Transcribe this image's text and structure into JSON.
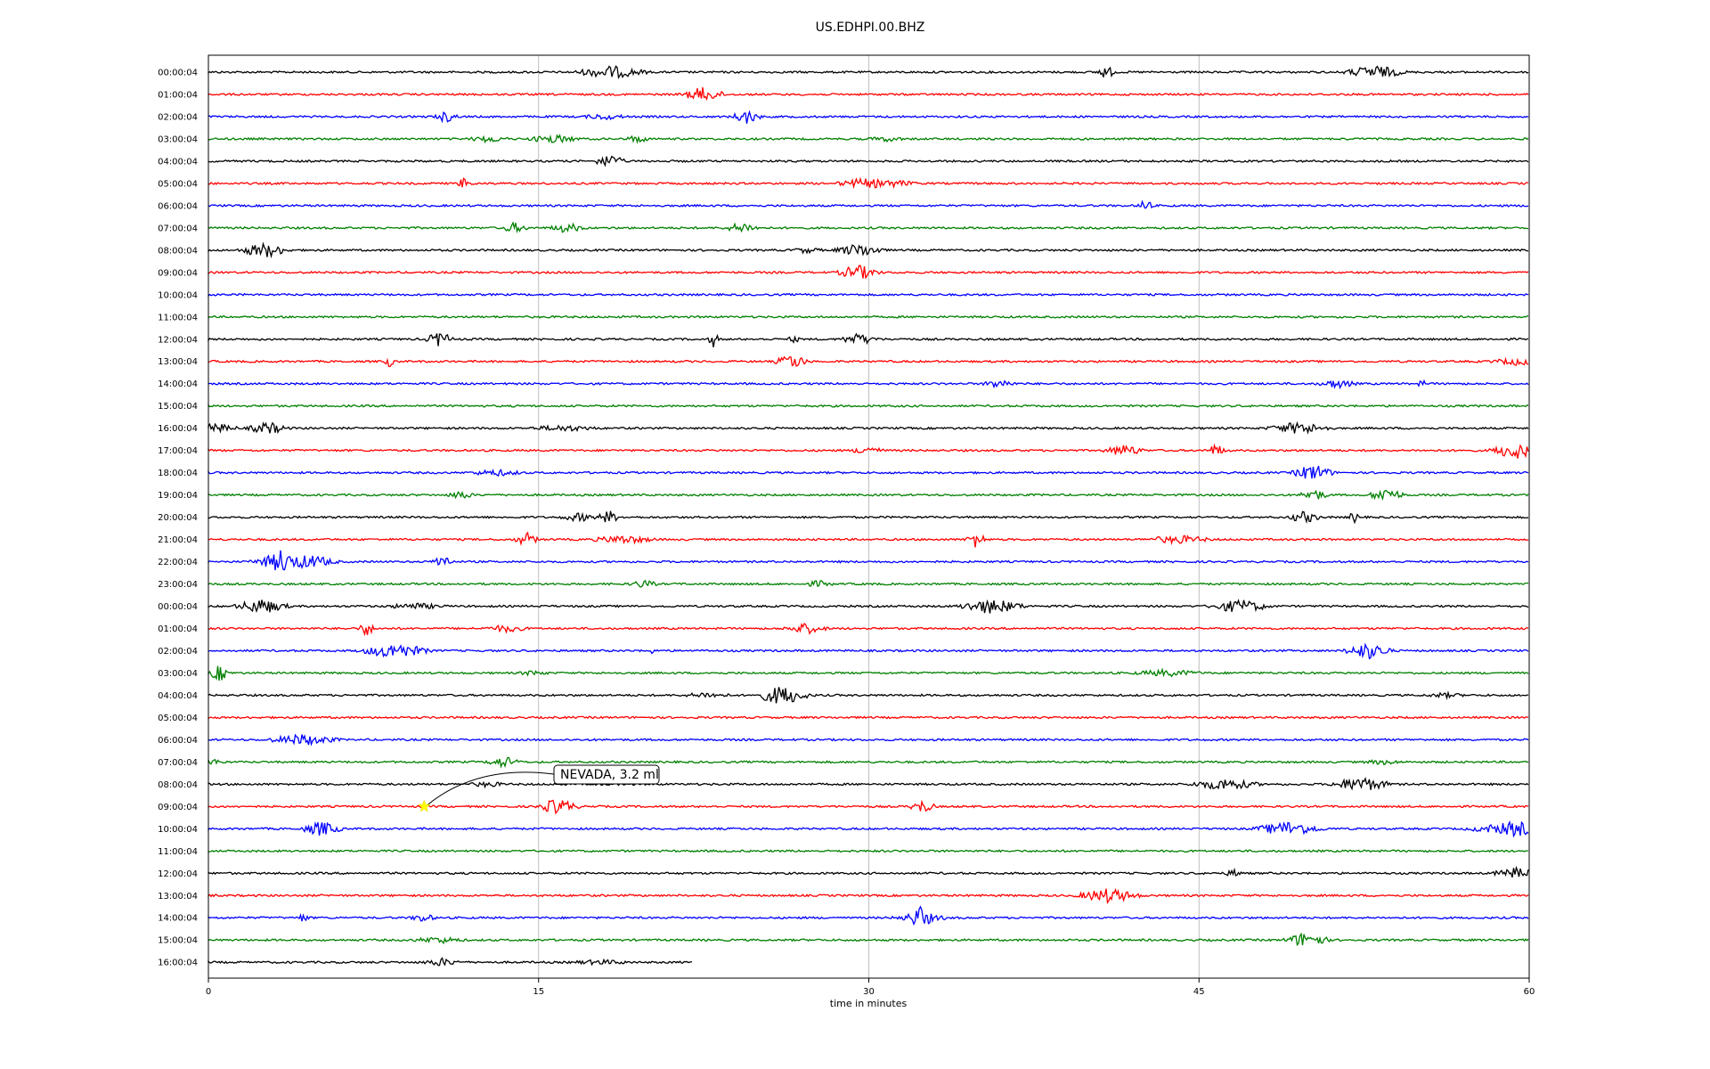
{
  "chart_data": {
    "type": "line",
    "title": "US.EDHPI.00.BHZ",
    "xlabel": "time in minutes",
    "ylabel": "",
    "xlim": [
      0,
      60
    ],
    "xticks": [
      "0",
      "15",
      "30",
      "45",
      "60"
    ],
    "grid": "vertical lines at 15, 30, 45 minutes",
    "series_colors": [
      "#000000",
      "#ff0000",
      "#0000ff",
      "#008000"
    ],
    "row_labels": [
      "00:00:04",
      "01:00:04",
      "02:00:04",
      "03:00:04",
      "04:00:04",
      "05:00:04",
      "06:00:04",
      "07:00:04",
      "08:00:04",
      "09:00:04",
      "10:00:04",
      "11:00:04",
      "12:00:04",
      "13:00:04",
      "14:00:04",
      "15:00:04",
      "16:00:04",
      "17:00:04",
      "18:00:04",
      "19:00:04",
      "20:00:04",
      "21:00:04",
      "22:00:04",
      "23:00:04",
      "00:00:04",
      "01:00:04",
      "02:00:04",
      "03:00:04",
      "04:00:04",
      "05:00:04",
      "06:00:04",
      "07:00:04",
      "08:00:04",
      "09:00:04",
      "10:00:04",
      "11:00:04",
      "12:00:04",
      "13:00:04",
      "14:00:04",
      "15:00:04",
      "16:00:04"
    ],
    "last_row_end_minutes": 22,
    "annotation": {
      "text": "NEVADA, 3.2 ml",
      "row_index": 33,
      "x_minutes": 9.8,
      "marker": "star",
      "marker_color": "#ffff00"
    }
  }
}
